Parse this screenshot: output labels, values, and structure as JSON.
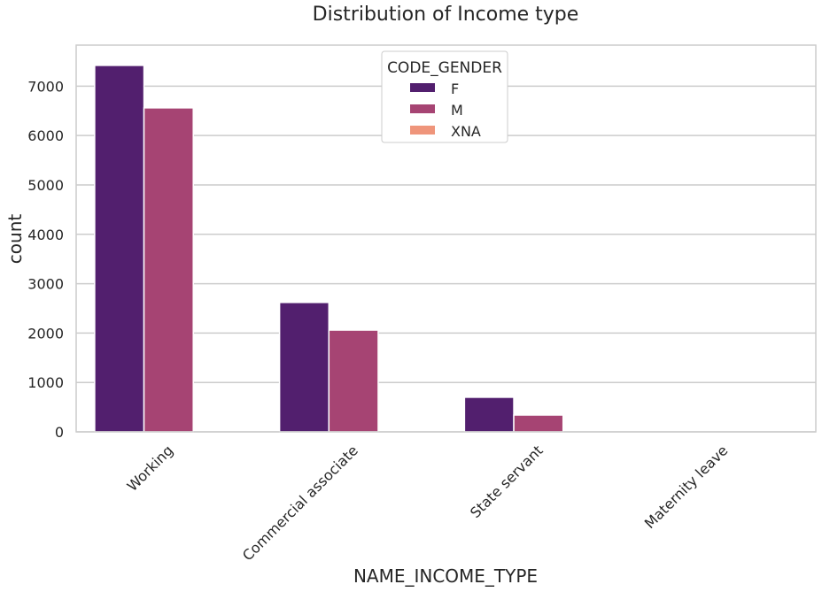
{
  "chart_data": {
    "type": "bar",
    "title": "Distribution of Income type",
    "xlabel": "NAME_INCOME_TYPE",
    "ylabel": "count",
    "categories": [
      "Working",
      "Commercial associate",
      "State servant",
      "Maternity leave"
    ],
    "series": [
      {
        "name": "F",
        "values": [
          7420,
          2620,
          700,
          0
        ]
      },
      {
        "name": "M",
        "values": [
          6560,
          2060,
          340,
          0
        ]
      },
      {
        "name": "XNA",
        "values": [
          0,
          0,
          0,
          0
        ]
      }
    ],
    "ylim": [
      0,
      7830
    ],
    "yticks": [
      0,
      1000,
      2000,
      3000,
      4000,
      5000,
      6000,
      7000
    ],
    "ytick_labels": [
      "0",
      "1000",
      "2000",
      "3000",
      "4000",
      "5000",
      "6000",
      "7000"
    ],
    "legend": {
      "title": "CODE_GENDER",
      "position": "top-center"
    },
    "colors": {
      "F": "#521f6e",
      "M": "#a64473",
      "XNA": "#ef957b",
      "grid": "#cccccc",
      "frame": "#cccccc",
      "text": "#262626"
    },
    "grid": true
  }
}
